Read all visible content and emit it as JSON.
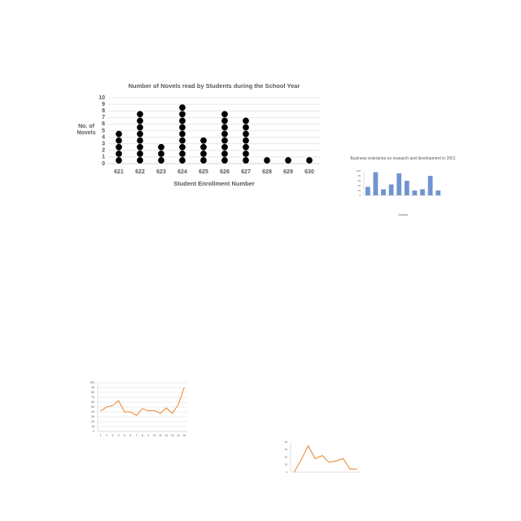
{
  "chart_data": [
    {
      "type": "dot",
      "title": "Number of Novels read by Students during the School Year",
      "xlabel": "Student Enrollment Number",
      "ylabel": "No. of Novels",
      "categories": [
        "621",
        "622",
        "623",
        "624",
        "625",
        "626",
        "627",
        "628",
        "629",
        "630"
      ],
      "values": [
        5,
        8,
        3,
        9,
        4,
        8,
        7,
        1,
        1,
        1
      ],
      "color": "#000000",
      "ylim": [
        0,
        10
      ],
      "yticks": [
        0,
        1,
        2,
        3,
        4,
        5,
        6,
        7,
        8,
        9,
        10
      ],
      "grid": true
    },
    {
      "type": "bar",
      "title": "Business enterprise on research and development in 2001",
      "xlabel": "Country",
      "categories": [
        null,
        null,
        null,
        null,
        null,
        null,
        null,
        null,
        null,
        null
      ],
      "values": [
        35,
        95,
        25,
        45,
        90,
        60,
        20,
        25,
        80,
        20
      ],
      "color": "#7094cf",
      "ylim": [
        0,
        100
      ],
      "yticks": [
        0,
        20,
        40,
        60,
        80,
        100
      ],
      "grid": false
    },
    {
      "type": "line",
      "categories": [
        1,
        2,
        3,
        4,
        5,
        6,
        7,
        8,
        9,
        10,
        11,
        12,
        13,
        14,
        15
      ],
      "values": [
        42,
        50,
        53,
        63,
        40,
        40,
        33,
        47,
        42,
        43,
        37,
        48,
        37,
        55,
        90
      ],
      "color": "#e8832a",
      "ylim": [
        0,
        100
      ],
      "yticks": [
        0,
        10,
        20,
        30,
        40,
        50,
        60,
        70,
        80,
        90,
        100
      ],
      "grid": true
    },
    {
      "type": "line",
      "categories": [
        null,
        null,
        null,
        null,
        null,
        null,
        null,
        null,
        null,
        null
      ],
      "values": [
        0,
        16,
        35,
        18,
        22,
        13,
        15,
        18,
        4,
        4
      ],
      "color": "#e8832a",
      "ylim": [
        0,
        40
      ],
      "yticks": [
        0,
        10,
        20,
        30,
        40
      ],
      "grid": false
    }
  ]
}
